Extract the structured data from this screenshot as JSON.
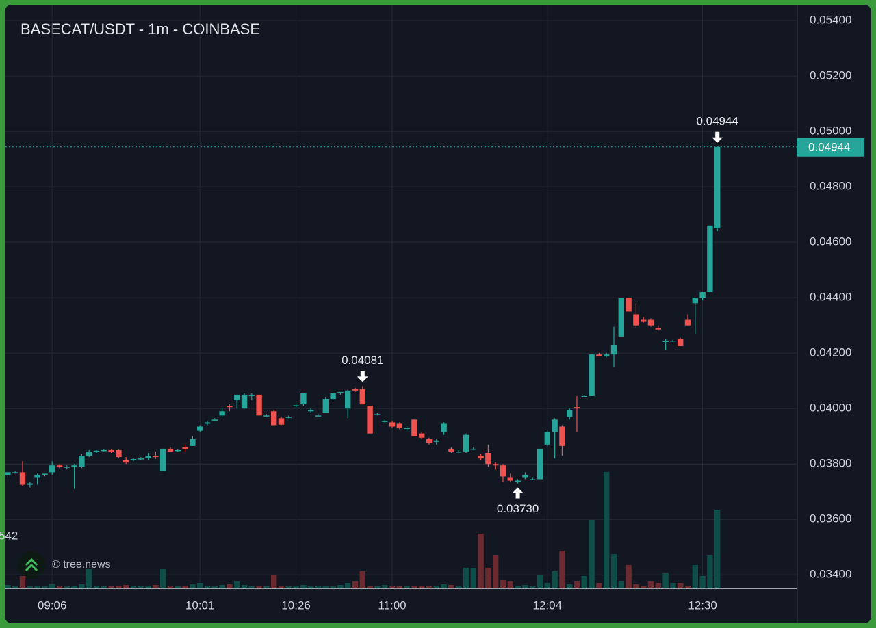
{
  "chart_data": {
    "type": "candlestick",
    "title": "BASECAT/USDT - 1m - COINBASE",
    "watermark": "© tree.news",
    "volume_label": "542",
    "categories": [
      null,
      null,
      null,
      null,
      null,
      null,
      "09:06",
      null,
      null,
      null,
      null,
      null,
      null,
      null,
      null,
      null,
      null,
      null,
      null,
      null,
      null,
      null,
      null,
      null,
      null,
      null,
      "10:01",
      null,
      null,
      null,
      null,
      null,
      null,
      null,
      null,
      null,
      null,
      null,
      null,
      "10:26",
      null,
      null,
      null,
      null,
      null,
      null,
      null,
      null,
      null,
      null,
      null,
      null,
      "11:00",
      null,
      null,
      null,
      null,
      null,
      null,
      null,
      null,
      null,
      null,
      null,
      null,
      null,
      null,
      null,
      null,
      null,
      null,
      null,
      null,
      "12:04",
      null,
      null,
      null,
      null,
      null,
      null,
      null,
      null,
      null,
      null,
      null,
      null,
      null,
      null,
      null,
      null,
      null,
      null,
      null,
      null,
      "12:30",
      null,
      null
    ],
    "open": [
      0.0376,
      0.0377,
      0.0377,
      0.03725,
      0.0375,
      0.0376,
      0.0377,
      0.03795,
      0.0379,
      0.0379,
      0.0379,
      0.0383,
      0.03845,
      0.03848,
      0.0385,
      0.0385,
      0.03815,
      0.03815,
      0.0382,
      0.03822,
      0.0383,
      0.03775,
      0.03855,
      0.03848,
      0.0386,
      0.03865,
      0.0392,
      0.03945,
      0.0396,
      0.03975,
      0.0401,
      0.0403,
      0.04,
      0.04045,
      0.0405,
      0.03975,
      0.0399,
      0.03965,
      0.0397,
      0.0401,
      0.04015,
      0.0399,
      0.03975,
      0.03985,
      0.04035,
      0.04055,
      0.04,
      0.0407,
      0.0407,
      0.0401,
      0.0398,
      0.03955,
      0.0395,
      0.03945,
      0.0393,
      0.0396,
      0.0391,
      0.0389,
      0.0388,
      0.03915,
      0.03855,
      0.03845,
      0.03845,
      0.03855,
      0.0383,
      0.0384,
      0.038,
      0.03795,
      0.0375,
      0.0374,
      0.0375,
      0.03745,
      0.03745,
      0.0387,
      0.03915,
      0.03935,
      0.0397,
      0.04005,
      0.04045,
      0.04045,
      0.04195,
      0.0419,
      0.04195,
      0.0426,
      0.044,
      0.0434,
      0.0432,
      0.0432,
      0.0429,
      0.0424,
      0.04245,
      0.0425,
      0.0432,
      0.0438,
      0.044,
      0.0442,
      0.0465
    ],
    "high": [
      0.03775,
      0.03775,
      0.0381,
      0.03735,
      0.03765,
      0.03765,
      0.0381,
      0.038,
      0.03795,
      0.038,
      0.03835,
      0.0385,
      0.0385,
      0.03855,
      0.03852,
      0.03852,
      0.03825,
      0.0382,
      0.03825,
      0.0384,
      0.03845,
      0.03855,
      0.0386,
      0.03855,
      0.0387,
      0.039,
      0.0394,
      0.03955,
      0.03965,
      0.04,
      0.04015,
      0.0405,
      0.04055,
      0.04055,
      0.0405,
      0.0398,
      0.03995,
      0.0397,
      0.03975,
      0.04015,
      0.04055,
      0.04,
      0.0398,
      0.0404,
      0.04055,
      0.0406,
      0.04068,
      0.04075,
      0.04081,
      0.0401,
      0.03985,
      0.0396,
      0.03955,
      0.0395,
      0.03935,
      0.0396,
      0.03915,
      0.03895,
      0.0389,
      0.0395,
      0.0386,
      0.0385,
      0.0391,
      0.0386,
      0.03835,
      0.0387,
      0.03805,
      0.038,
      0.03765,
      0.03745,
      0.0377,
      0.0375,
      0.03855,
      0.0392,
      0.03965,
      0.0394,
      0.04,
      0.04045,
      0.0405,
      0.04195,
      0.042,
      0.042,
      0.04295,
      0.044,
      0.044,
      0.0438,
      0.0433,
      0.04325,
      0.043,
      0.0425,
      0.0425,
      0.04255,
      0.0434,
      0.044,
      0.0442,
      0.0466,
      0.04944
    ],
    "low": [
      0.0375,
      0.03765,
      0.0372,
      0.03715,
      0.03725,
      0.03755,
      0.0376,
      0.03785,
      0.0378,
      0.0371,
      0.03785,
      0.03825,
      0.0384,
      0.03845,
      0.0384,
      0.03822,
      0.038,
      0.0381,
      0.03815,
      0.03815,
      0.03818,
      0.03775,
      0.03845,
      0.03845,
      0.03845,
      0.03865,
      0.03915,
      0.0394,
      0.03955,
      0.0397,
      0.0399,
      0.04,
      0.04,
      0.0403,
      0.03975,
      0.0397,
      0.0394,
      0.0394,
      0.03965,
      0.04005,
      0.0401,
      0.03985,
      0.0397,
      0.03985,
      0.0403,
      0.0405,
      0.03965,
      0.0406,
      0.04015,
      0.0391,
      0.03975,
      0.0395,
      0.0393,
      0.03925,
      0.0392,
      0.039,
      0.0389,
      0.0387,
      0.0387,
      0.03905,
      0.0384,
      0.0384,
      0.0384,
      0.0385,
      0.03815,
      0.0379,
      0.0378,
      0.03735,
      0.03735,
      0.0373,
      0.03745,
      0.03745,
      0.03745,
      0.03865,
      0.0382,
      0.0383,
      0.0396,
      0.03915,
      0.0404,
      0.04045,
      0.0419,
      0.04185,
      0.0415,
      0.0426,
      0.0435,
      0.0429,
      0.0431,
      0.04295,
      0.0428,
      0.0421,
      0.0424,
      0.04225,
      0.043,
      0.0427,
      0.0439,
      0.0442,
      0.0464
    ],
    "close": [
      0.0377,
      0.0377,
      0.03725,
      0.0373,
      0.0376,
      0.03765,
      0.03795,
      0.0379,
      0.0379,
      0.03795,
      0.0383,
      0.03845,
      0.03848,
      0.0385,
      0.03845,
      0.03825,
      0.03805,
      0.03818,
      0.0382,
      0.0383,
      0.03825,
      0.03855,
      0.03845,
      0.0385,
      0.03855,
      0.0389,
      0.03935,
      0.0395,
      0.0396,
      0.0399,
      0.04005,
      0.0405,
      0.0405,
      0.0405,
      0.03975,
      0.03975,
      0.0394,
      0.03942,
      0.0397,
      0.04012,
      0.04055,
      0.03995,
      0.03975,
      0.04035,
      0.04055,
      0.0406,
      0.04065,
      0.04065,
      0.04015,
      0.0391,
      0.0398,
      0.03955,
      0.03935,
      0.0393,
      0.0393,
      0.039,
      0.03895,
      0.03875,
      0.03885,
      0.03945,
      0.03845,
      0.03845,
      0.03905,
      0.03855,
      0.0382,
      0.038,
      0.03795,
      0.03755,
      0.0374,
      0.0374,
      0.0376,
      0.03745,
      0.03855,
      0.03915,
      0.0396,
      0.03865,
      0.03995,
      0.04,
      0.04045,
      0.04195,
      0.0419,
      0.04195,
      0.0423,
      0.044,
      0.0435,
      0.043,
      0.04315,
      0.043,
      0.04285,
      0.04245,
      0.04245,
      0.04225,
      0.043,
      0.044,
      0.0442,
      0.0466,
      0.04944
    ],
    "volume": [
      5,
      3,
      18,
      4,
      4,
      3,
      6,
      3,
      3,
      4,
      6,
      28,
      4,
      3,
      3,
      4,
      5,
      3,
      3,
      4,
      5,
      28,
      3,
      3,
      4,
      6,
      8,
      4,
      3,
      5,
      6,
      10,
      5,
      3,
      4,
      3,
      20,
      4,
      3,
      4,
      5,
      3,
      4,
      4,
      3,
      5,
      8,
      10,
      25,
      4,
      3,
      5,
      4,
      3,
      3,
      4,
      4,
      3,
      4,
      6,
      5,
      4,
      30,
      30,
      80,
      30,
      48,
      12,
      10,
      4,
      5,
      3,
      20,
      8,
      25,
      55,
      6,
      10,
      18,
      100,
      8,
      170,
      50,
      10,
      34,
      6,
      4,
      10,
      8,
      22,
      8,
      8,
      4,
      34,
      18,
      48,
      115
    ],
    "up_color": "#26a69a",
    "down_color": "#ef5350",
    "volume_up_color": "#0f4d48",
    "volume_down_color": "#6a2a30",
    "ylim": [
      0.033512,
      0.054545
    ],
    "yticks": [
      {
        "value": 0.034,
        "label": "0.03400"
      },
      {
        "value": 0.036,
        "label": "0.03600"
      },
      {
        "value": 0.038,
        "label": "0.03800"
      },
      {
        "value": 0.04,
        "label": "0.04000"
      },
      {
        "value": 0.042,
        "label": "0.04200"
      },
      {
        "value": 0.044,
        "label": "0.04400"
      },
      {
        "value": 0.046,
        "label": "0.04600"
      },
      {
        "value": 0.048,
        "label": "0.04800"
      },
      {
        "value": 0.05,
        "label": "0.05000"
      },
      {
        "value": 0.052,
        "label": "0.05200"
      },
      {
        "value": 0.054,
        "label": "0.05400"
      }
    ],
    "grid": true,
    "annotations": [
      {
        "value": 0.04081,
        "label": "0.04081"
      },
      {
        "value": 0.0373,
        "label": "0.03730"
      },
      {
        "value": 0.04944,
        "label": "0.04944"
      }
    ],
    "last_price": {
      "value": 0.04944,
      "label": "0.04944"
    }
  }
}
